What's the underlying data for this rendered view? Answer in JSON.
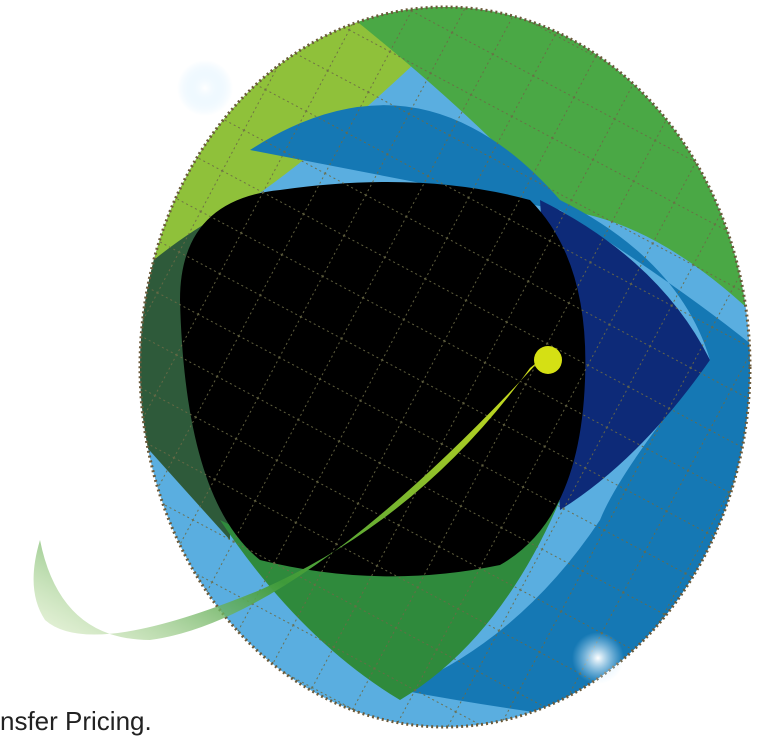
{
  "caption": "nsfer Pricing."
}
